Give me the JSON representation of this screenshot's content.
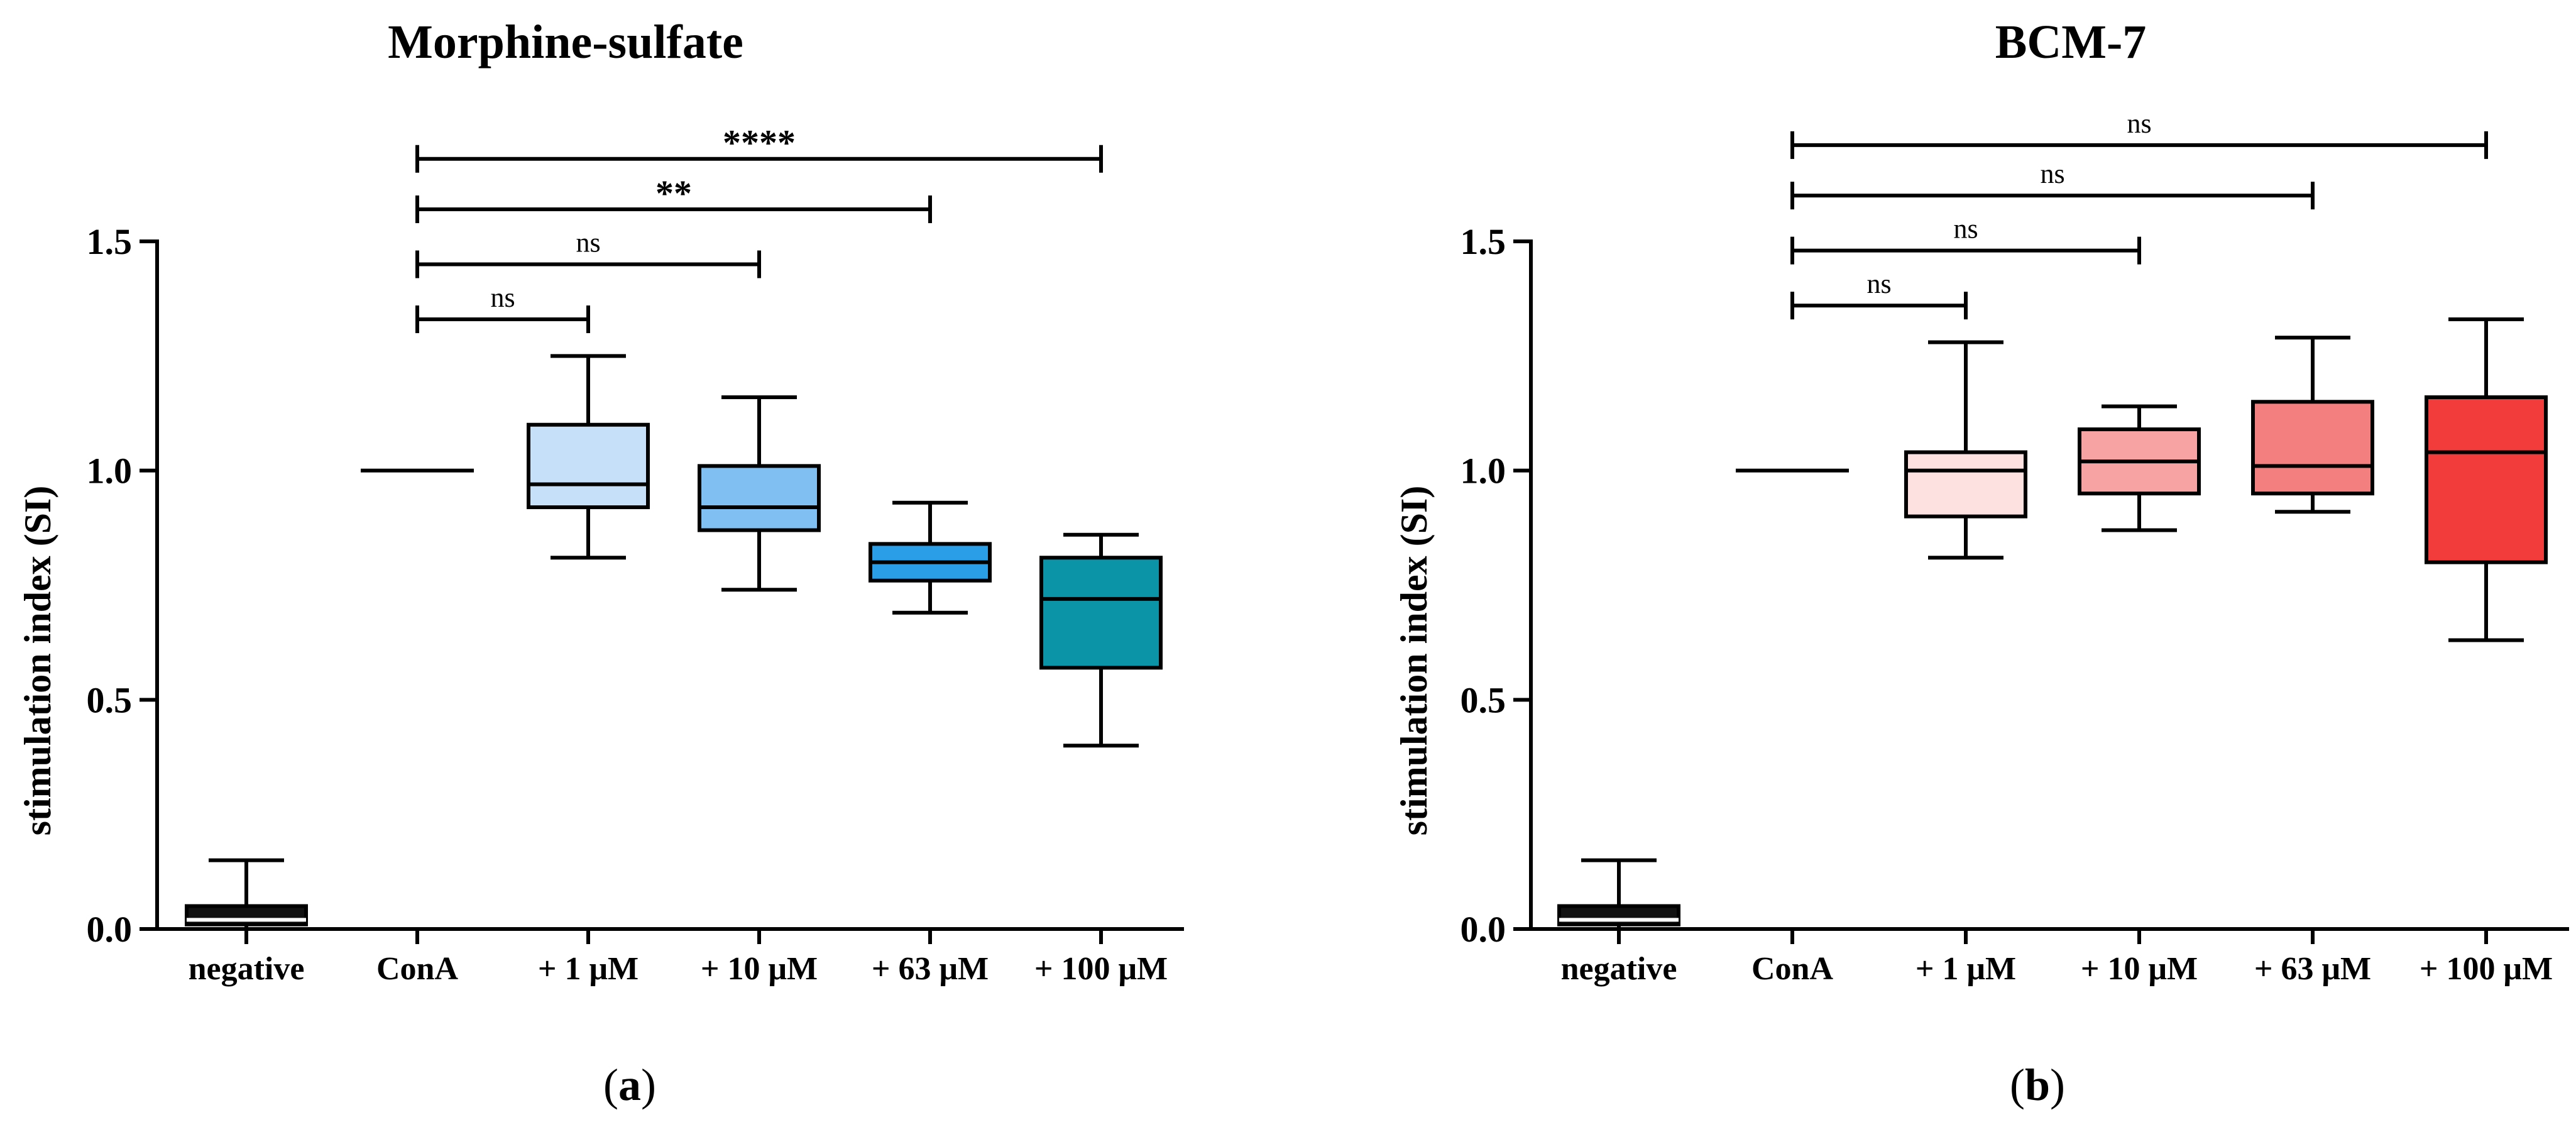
{
  "chart_data": [
    {
      "type": "boxplot",
      "panel": "(a)",
      "panel_letter": "a",
      "title": "Morphine-sulfate",
      "xlabel": "",
      "ylabel": "stimulation index (SI)",
      "ylim": [
        0,
        1.5
      ],
      "yticks": [
        "0.0",
        "0.5",
        "1.0",
        "1.5"
      ],
      "categories": [
        "negative",
        "ConA",
        "+ 1 μM",
        "+ 10 μM",
        "+ 63 μM",
        "+ 100 μM"
      ],
      "boxes": [
        {
          "category": "negative",
          "min": 0.0,
          "q1": 0.01,
          "median": 0.02,
          "q3": 0.05,
          "max": 0.15,
          "color": "#111111"
        },
        {
          "category": "ConA",
          "min": 1.0,
          "q1": 1.0,
          "median": 1.0,
          "q3": 1.0,
          "max": 1.0,
          "color": "#ffffff"
        },
        {
          "category": "+ 1 μM",
          "min": 0.81,
          "q1": 0.92,
          "median": 0.97,
          "q3": 1.1,
          "max": 1.25,
          "color": "#c6e0fa"
        },
        {
          "category": "+ 10 μM",
          "min": 0.74,
          "q1": 0.87,
          "median": 0.92,
          "q3": 1.01,
          "max": 1.16,
          "color": "#7fbff2"
        },
        {
          "category": "+ 63 μM",
          "min": 0.69,
          "q1": 0.76,
          "median": 0.8,
          "q3": 0.84,
          "max": 0.93,
          "color": "#2a9fe8"
        },
        {
          "category": "+ 100 μM",
          "min": 0.4,
          "q1": 0.57,
          "median": 0.72,
          "q3": 0.81,
          "max": 0.86,
          "color": "#0b93a8"
        }
      ],
      "comparisons": [
        {
          "from": "ConA",
          "to": "+ 1 μM",
          "label": "ns",
          "y": 1.33
        },
        {
          "from": "ConA",
          "to": "+ 10 μM",
          "label": "ns",
          "y": 1.45
        },
        {
          "from": "ConA",
          "to": "+ 63 μM",
          "label": "**",
          "y": 1.57
        },
        {
          "from": "ConA",
          "to": "+ 100 μM",
          "label": "****",
          "y": 1.68
        }
      ]
    },
    {
      "type": "boxplot",
      "panel": "(b)",
      "panel_letter": "b",
      "title": "BCM-7",
      "xlabel": "",
      "ylabel": "stimulation index (SI)",
      "ylim": [
        0,
        1.5
      ],
      "yticks": [
        "0.0",
        "0.5",
        "1.0",
        "1.5"
      ],
      "categories": [
        "negative",
        "ConA",
        "+ 1 μM",
        "+ 10 μM",
        "+ 63 μM",
        "+ 100 μM"
      ],
      "boxes": [
        {
          "category": "negative",
          "min": 0.0,
          "q1": 0.01,
          "median": 0.02,
          "q3": 0.05,
          "max": 0.15,
          "color": "#111111"
        },
        {
          "category": "ConA",
          "min": 1.0,
          "q1": 1.0,
          "median": 1.0,
          "q3": 1.0,
          "max": 1.0,
          "color": "#ffffff"
        },
        {
          "category": "+ 1 μM",
          "min": 0.81,
          "q1": 0.9,
          "median": 1.0,
          "q3": 1.04,
          "max": 1.28,
          "color": "#fde0e0"
        },
        {
          "category": "+ 10 μM",
          "min": 0.87,
          "q1": 0.95,
          "median": 1.02,
          "q3": 1.09,
          "max": 1.14,
          "color": "#f7a3a3"
        },
        {
          "category": "+ 63 μM",
          "min": 0.91,
          "q1": 0.95,
          "median": 1.01,
          "q3": 1.15,
          "max": 1.29,
          "color": "#f47f7f"
        },
        {
          "category": "+ 100 μM",
          "min": 0.63,
          "q1": 0.8,
          "median": 1.04,
          "q3": 1.16,
          "max": 1.33,
          "color": "#f23c3c"
        }
      ],
      "comparisons": [
        {
          "from": "ConA",
          "to": "+ 1 μM",
          "label": "ns",
          "y": 1.36
        },
        {
          "from": "ConA",
          "to": "+ 10 μM",
          "label": "ns",
          "y": 1.48
        },
        {
          "from": "ConA",
          "to": "+ 63 μM",
          "label": "ns",
          "y": 1.6
        },
        {
          "from": "ConA",
          "to": "+ 100 μM",
          "label": "ns",
          "y": 1.71
        }
      ]
    }
  ]
}
